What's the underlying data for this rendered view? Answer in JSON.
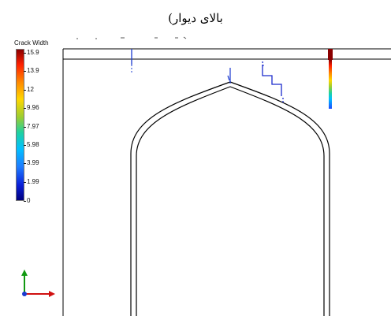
{
  "caption": "بالای دیوار)",
  "legend": {
    "title": "Crack Width",
    "ticks": [
      "15.9",
      "13.9",
      "12",
      "9.96",
      "7.97",
      "5.98",
      "3.99",
      "1.99",
      "0"
    ]
  },
  "colors": {
    "max": "#8b0000",
    "min": "#00007f",
    "outline": "#000000",
    "axis_y": "#119911",
    "axis_x": "#d01010",
    "axis_origin": "#1a3ad0"
  },
  "icons": {
    "axis_triad": "xy-axis-triad-icon"
  }
}
